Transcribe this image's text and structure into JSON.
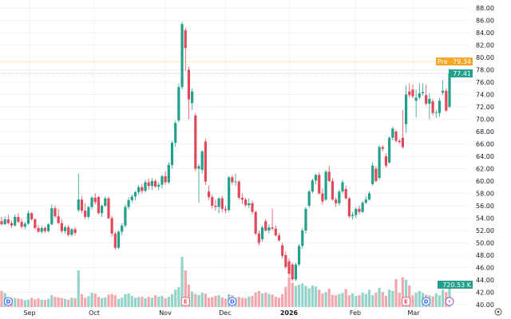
{
  "chart_data": {
    "type": "candlestick",
    "y_axis": {
      "range": [
        40,
        88
      ],
      "ticks": [
        "88.00",
        "86.00",
        "84.00",
        "82.00",
        "80.00",
        "78.00",
        "76.00",
        "74.00",
        "72.00",
        "70.00",
        "68.00",
        "66.00",
        "64.00",
        "62.00",
        "60.00",
        "58.00",
        "56.00",
        "54.00",
        "52.00",
        "50.00",
        "48.00",
        "46.00",
        "44.00",
        "42.00",
        "40.00"
      ],
      "position": "right",
      "grid": true
    },
    "x_axis": {
      "labels": [
        "Sep",
        "Oct",
        "Nov",
        "Dec",
        "2026",
        "Feb",
        "Mar"
      ],
      "grid": true
    },
    "ohlc": [
      [
        53.5,
        54.2,
        52.8,
        53.0
      ],
      [
        53.0,
        54.3,
        52.9,
        53.8
      ],
      [
        53.8,
        54.5,
        53.0,
        53.2
      ],
      [
        53.2,
        53.6,
        52.4,
        52.8
      ],
      [
        52.8,
        54.6,
        52.6,
        54.2
      ],
      [
        54.2,
        54.8,
        53.2,
        53.4
      ],
      [
        53.4,
        53.9,
        52.3,
        52.6
      ],
      [
        52.6,
        53.4,
        52.2,
        53.1
      ],
      [
        53.1,
        55.2,
        52.9,
        54.8
      ],
      [
        54.8,
        55.0,
        53.6,
        53.8
      ],
      [
        53.8,
        54.0,
        52.2,
        52.4
      ],
      [
        52.4,
        52.9,
        51.6,
        51.8
      ],
      [
        51.8,
        52.8,
        51.5,
        52.4
      ],
      [
        52.4,
        52.7,
        51.6,
        51.9
      ],
      [
        51.9,
        53.2,
        51.7,
        53.0
      ],
      [
        53.0,
        56.2,
        52.8,
        55.6
      ],
      [
        55.6,
        56.0,
        54.0,
        54.3
      ],
      [
        54.3,
        55.5,
        53.0,
        53.2
      ],
      [
        53.2,
        53.8,
        51.6,
        51.9
      ],
      [
        51.9,
        52.8,
        51.5,
        52.5
      ],
      [
        52.5,
        52.9,
        51.0,
        51.3
      ],
      [
        51.3,
        52.4,
        51.0,
        52.2
      ],
      [
        52.2,
        52.6,
        51.2,
        51.6
      ],
      [
        55.3,
        61.2,
        55.0,
        57.0
      ],
      [
        57.0,
        57.5,
        54.8,
        55.2
      ],
      [
        55.2,
        56.4,
        53.8,
        54.2
      ],
      [
        54.2,
        56.0,
        53.9,
        55.8
      ],
      [
        55.8,
        57.6,
        55.4,
        57.3
      ],
      [
        57.3,
        58.0,
        56.2,
        56.6
      ],
      [
        57.4,
        57.6,
        54.6,
        54.8
      ],
      [
        54.8,
        56.2,
        54.2,
        56.0
      ],
      [
        56.0,
        57.5,
        55.8,
        57.2
      ],
      [
        57.2,
        57.5,
        53.8,
        54.0
      ],
      [
        54.0,
        54.4,
        51.0,
        51.5
      ],
      [
        51.5,
        51.8,
        48.9,
        49.2
      ],
      [
        49.2,
        52.0,
        49.0,
        51.8
      ],
      [
        51.8,
        53.2,
        51.2,
        52.8
      ],
      [
        52.8,
        56.2,
        52.5,
        55.8
      ],
      [
        55.8,
        57.4,
        55.4,
        56.9
      ],
      [
        56.9,
        57.8,
        56.5,
        57.5
      ],
      [
        57.5,
        58.4,
        56.9,
        58.2
      ],
      [
        58.2,
        59.4,
        57.8,
        59.0
      ],
      [
        59.0,
        59.5,
        58.0,
        58.4
      ],
      [
        58.4,
        60.2,
        58.2,
        59.8
      ],
      [
        59.8,
        60.4,
        58.6,
        59.2
      ],
      [
        59.2,
        60.5,
        58.6,
        60.0
      ],
      [
        60.0,
        60.3,
        58.9,
        59.1
      ],
      [
        59.1,
        59.8,
        58.5,
        59.4
      ],
      [
        59.4,
        61.0,
        58.8,
        60.8
      ],
      [
        60.8,
        61.6,
        59.4,
        59.8
      ],
      [
        59.8,
        63.0,
        59.5,
        62.6
      ],
      [
        62.6,
        66.5,
        62.0,
        66.2
      ],
      [
        66.2,
        69.8,
        65.5,
        69.4
      ],
      [
        69.8,
        75.8,
        69.5,
        75.2
      ],
      [
        75.2,
        85.8,
        74.8,
        85.4
      ],
      [
        84.4,
        84.8,
        77.8,
        81.5
      ],
      [
        78.0,
        78.5,
        70.0,
        73.2
      ],
      [
        72.6,
        75.0,
        71.5,
        74.5
      ],
      [
        70.6,
        71.0,
        61.6,
        62.0
      ],
      [
        62.0,
        62.8,
        56.5,
        62.4
      ],
      [
        61.8,
        65.0,
        61.2,
        64.8
      ],
      [
        66.4,
        66.8,
        59.4,
        59.9
      ],
      [
        58.3,
        59.2,
        57.0,
        57.4
      ],
      [
        57.4,
        57.8,
        55.6,
        56.0
      ],
      [
        56.0,
        57.0,
        55.2,
        55.8
      ],
      [
        55.8,
        57.4,
        54.8,
        57.2
      ],
      [
        57.2,
        57.6,
        55.0,
        55.5
      ],
      [
        55.5,
        56.0,
        54.8,
        55.3
      ],
      [
        55.3,
        60.8,
        55.0,
        60.6
      ],
      [
        60.6,
        61.0,
        59.4,
        59.8
      ],
      [
        59.8,
        61.2,
        59.2,
        59.9
      ],
      [
        59.9,
        60.2,
        57.0,
        57.3
      ],
      [
        57.3,
        58.0,
        56.3,
        57.0
      ],
      [
        57.0,
        57.3,
        55.8,
        56.1
      ],
      [
        56.1,
        57.2,
        55.6,
        56.4
      ],
      [
        56.4,
        56.8,
        54.6,
        55.0
      ],
      [
        55.0,
        55.2,
        51.2,
        51.5
      ],
      [
        51.5,
        52.0,
        49.6,
        50.0
      ],
      [
        50.6,
        52.8,
        50.2,
        52.5
      ],
      [
        53.5,
        53.8,
        51.8,
        52.0
      ],
      [
        52.0,
        53.0,
        51.5,
        52.5
      ],
      [
        52.5,
        55.6,
        52.0,
        52.3
      ],
      [
        52.3,
        52.8,
        51.0,
        51.2
      ],
      [
        51.2,
        51.6,
        50.2,
        50.4
      ],
      [
        49.6,
        50.0,
        47.5,
        47.9
      ],
      [
        48.0,
        48.6,
        45.8,
        46.1
      ],
      [
        47.0,
        47.5,
        44.6,
        45.0
      ],
      [
        46.5,
        46.8,
        43.8,
        44.1
      ],
      [
        44.1,
        46.8,
        43.8,
        46.5
      ],
      [
        46.5,
        49.8,
        46.2,
        49.5
      ],
      [
        49.5,
        52.4,
        49.0,
        52.0
      ],
      [
        52.0,
        55.8,
        51.5,
        55.5
      ],
      [
        56.0,
        58.6,
        55.6,
        58.3
      ],
      [
        58.3,
        60.4,
        58.0,
        60.1
      ],
      [
        60.1,
        61.2,
        59.5,
        61.0
      ],
      [
        61.0,
        61.4,
        57.8,
        58.0
      ],
      [
        58.0,
        58.8,
        56.2,
        56.7
      ],
      [
        57.0,
        61.8,
        56.8,
        61.5
      ],
      [
        61.5,
        62.5,
        59.8,
        60.0
      ],
      [
        60.0,
        60.5,
        56.8,
        57.0
      ],
      [
        57.0,
        57.4,
        55.8,
        56.4
      ],
      [
        56.4,
        58.6,
        56.0,
        58.3
      ],
      [
        58.3,
        60.2,
        58.0,
        59.8
      ],
      [
        58.7,
        59.2,
        57.0,
        57.2
      ],
      [
        57.2,
        57.4,
        54.0,
        54.3
      ],
      [
        54.3,
        55.0,
        53.8,
        54.5
      ],
      [
        54.5,
        55.8,
        54.0,
        55.5
      ],
      [
        55.5,
        56.0,
        54.6,
        55.0
      ],
      [
        55.0,
        56.8,
        54.8,
        56.5
      ],
      [
        56.5,
        57.5,
        56.2,
        57.0
      ],
      [
        57.0,
        58.3,
        56.8,
        58.0
      ],
      [
        59.5,
        63.0,
        59.2,
        62.5
      ],
      [
        62.0,
        62.4,
        59.8,
        60.0
      ],
      [
        60.5,
        65.8,
        60.2,
        65.5
      ],
      [
        65.5,
        65.8,
        64.8,
        65.2
      ],
      [
        64.0,
        64.4,
        62.2,
        62.5
      ],
      [
        63.0,
        67.2,
        62.8,
        67.0
      ],
      [
        67.0,
        68.8,
        66.6,
        68.5
      ],
      [
        68.0,
        68.3,
        66.2,
        66.5
      ],
      [
        66.5,
        66.8,
        66.0,
        66.3
      ],
      [
        67.0,
        71.5,
        65.2,
        65.5
      ],
      [
        69.2,
        75.5,
        67.8,
        74.0
      ],
      [
        74.5,
        75.8,
        73.5,
        73.9
      ],
      [
        74.8,
        75.6,
        73.4,
        73.7
      ],
      [
        73.0,
        74.8,
        70.3,
        73.5
      ],
      [
        73.5,
        75.8,
        73.2,
        74.2
      ],
      [
        74.2,
        75.8,
        73.8,
        74.4
      ],
      [
        73.9,
        75.6,
        72.2,
        72.5
      ],
      [
        72.5,
        74.2,
        70.0,
        73.3
      ],
      [
        72.9,
        73.3,
        70.6,
        71.0
      ],
      [
        71.0,
        71.5,
        70.2,
        71.1
      ],
      [
        71.0,
        73.4,
        70.4,
        73.0
      ],
      [
        74.3,
        76.3,
        73.9,
        74.6
      ],
      [
        74.6,
        75.0,
        71.2,
        71.4
      ],
      [
        72.0,
        78.2,
        71.8,
        77.41
      ]
    ],
    "volume_k": [
      520,
      450,
      300,
      280,
      290,
      270,
      260,
      220,
      240,
      300,
      250,
      280,
      240,
      230,
      260,
      380,
      330,
      310,
      290,
      260,
      240,
      300,
      280,
      1180,
      420,
      300,
      350,
      460,
      430,
      330,
      290,
      310,
      400,
      420,
      380,
      260,
      300,
      420,
      440,
      360,
      300,
      320,
      330,
      280,
      330,
      300,
      380,
      330,
      360,
      280,
      330,
      420,
      560,
      640,
      1620,
      1180,
      720,
      500,
      420,
      390,
      460,
      430,
      300,
      320,
      360,
      380,
      310,
      270,
      420,
      380,
      300,
      330,
      300,
      290,
      340,
      360,
      470,
      520,
      440,
      460,
      420,
      400,
      330,
      300,
      420,
      650,
      960,
      780,
      680,
      720,
      760,
      680,
      600,
      700,
      660,
      560,
      440,
      480,
      590,
      400,
      380,
      420,
      450,
      580,
      380,
      440,
      360,
      380,
      460,
      420,
      560,
      380,
      460,
      620,
      480,
      360,
      560,
      520,
      900,
      460,
      960,
      880,
      700,
      380,
      460,
      520,
      460,
      400,
      380,
      340,
      440,
      380,
      560,
      480,
      720.53
    ],
    "premarket": {
      "label": "Pre",
      "value": "79.34",
      "price": 79.34,
      "color": "#f5a623"
    },
    "last_price": {
      "value": "77.41",
      "price": 77.41,
      "color": "#22a08a"
    },
    "last_volume": {
      "value": "720.53 K",
      "color": "#22a08a"
    },
    "events": [
      {
        "type": "dividend",
        "label": "D",
        "candle": 2
      },
      {
        "type": "earnings",
        "label": "E",
        "candle": 55
      },
      {
        "type": "dividend",
        "label": "D",
        "candle": 69
      },
      {
        "type": "earnings",
        "label": "E",
        "candle": 121
      },
      {
        "type": "dividend",
        "label": "D",
        "candle": 127
      },
      {
        "type": "split",
        "label": "⚡",
        "candle": 134
      }
    ],
    "colors": {
      "up": "#22a08a",
      "down": "#e0495a",
      "up_volume": "#93d3c8",
      "down_volume": "#f2a7ad"
    }
  }
}
